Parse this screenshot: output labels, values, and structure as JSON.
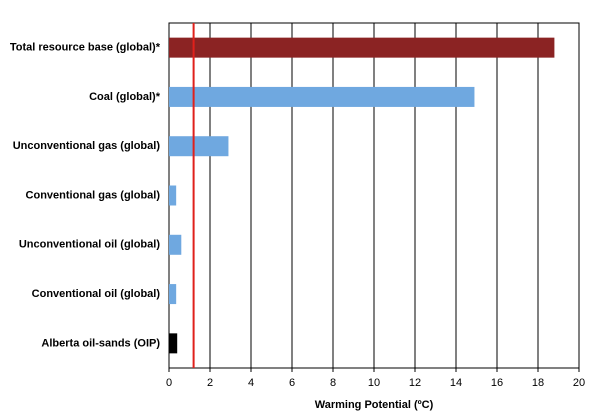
{
  "chart_data": {
    "type": "hbar",
    "categories": [
      "Total resource base (global)*",
      "Coal (global)*",
      "Unconventional gas (global)",
      "Conventional gas (global)",
      "Unconventional oil (global)",
      "Conventional oil (global)",
      "Alberta oil-sands (OIP)"
    ],
    "values": [
      18.8,
      14.9,
      2.9,
      0.35,
      0.6,
      0.35,
      0.4
    ],
    "colors": [
      "#8b2323",
      "#6fa8e0",
      "#6fa8e0",
      "#6fa8e0",
      "#6fa8e0",
      "#6fa8e0",
      "#000000"
    ],
    "x_label": "Warming Potential (ºC)",
    "xlim": [
      0,
      20
    ],
    "xticks": [
      0,
      2,
      4,
      6,
      8,
      10,
      12,
      14,
      16,
      18,
      20
    ],
    "grid": true,
    "reference_line": {
      "value": 1.2,
      "color": "#e0201b"
    }
  }
}
